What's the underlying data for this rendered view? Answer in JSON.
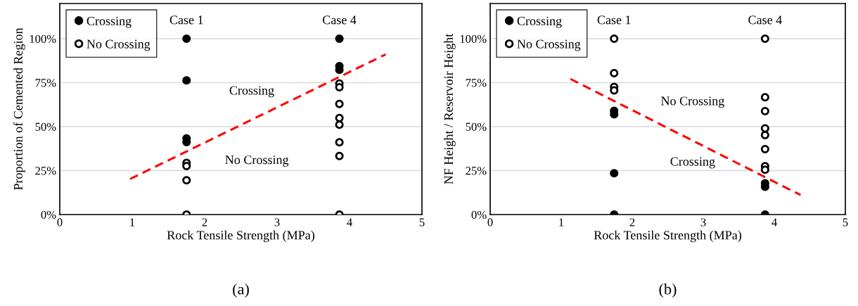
{
  "chart_data": [
    {
      "type": "scatter",
      "xlabel": "Rock Tensile Strength (MPa)",
      "ylabel": "Proportion of Cemented Region",
      "xlim": [
        0,
        5
      ],
      "xticks": [
        0,
        1,
        2,
        3,
        4,
        5
      ],
      "ylim": [
        0,
        120
      ],
      "yticks": [
        {
          "value": 0,
          "label": "0%"
        },
        {
          "value": 25,
          "label": "25%"
        },
        {
          "value": 50,
          "label": "50%"
        },
        {
          "value": 75,
          "label": "75%"
        },
        {
          "value": 100,
          "label": "100%"
        }
      ],
      "grid": "y",
      "legend": "top left",
      "series": [
        {
          "name": "Crossing",
          "color": "#000000",
          "marker": "circle",
          "x": [
            1.75,
            1.75,
            1.75,
            1.75,
            3.86,
            3.86,
            3.86
          ],
          "values": [
            100,
            76.3,
            43.3,
            41.2,
            100,
            84.4,
            82.3
          ]
        },
        {
          "name": "No Crossing",
          "color": "#000000",
          "marker": "circle",
          "x": [
            1.75,
            1.75,
            1.75,
            1.75,
            3.86,
            3.86,
            3.86,
            3.86,
            3.86,
            3.86,
            3.86,
            3.86
          ],
          "values": [
            29.4,
            27.6,
            19.5,
            0,
            74.5,
            72.4,
            62.9,
            54.9,
            51.1,
            41.1,
            33.3,
            0
          ]
        },
        {
          "type": "line",
          "color": "#ff0000",
          "line_style": "dashed",
          "marker": "none",
          "x": [
            0.97,
            4.5
          ],
          "values": [
            20.2,
            91.1
          ]
        }
      ],
      "annotations": [
        "Case 1",
        "Case 4",
        "Crossing",
        "No Crossing",
        "(a)"
      ]
    },
    {
      "type": "scatter",
      "xlabel": "Rock Tensile Strength (MPa)",
      "ylabel": "NF Height / Reservoir Height",
      "xlim": [
        0,
        5
      ],
      "xticks": [
        0,
        1,
        2,
        3,
        4,
        5
      ],
      "ylim": [
        0,
        120
      ],
      "yticks": [
        {
          "value": 0,
          "label": "0%"
        },
        {
          "value": 25,
          "label": "25%"
        },
        {
          "value": 50,
          "label": "50%"
        },
        {
          "value": 75,
          "label": "75%"
        },
        {
          "value": 100,
          "label": "100%"
        }
      ],
      "grid": "y",
      "legend": "top left",
      "series": [
        {
          "name": "Crossing",
          "color": "#000000",
          "marker": "circle",
          "x": [
            1.745,
            1.745,
            1.745,
            1.745,
            3.87,
            3.87,
            3.87
          ],
          "values": [
            59.0,
            57.0,
            23.5,
            0,
            17.8,
            15.8,
            0
          ]
        },
        {
          "name": "No Crossing",
          "color": "#000000",
          "marker": "circle",
          "x": [
            1.745,
            1.745,
            1.745,
            1.745,
            3.87,
            3.87,
            3.87,
            3.87,
            3.87,
            3.87,
            3.87,
            3.87
          ],
          "values": [
            100,
            80.4,
            72.6,
            70.6,
            100,
            66.7,
            58.8,
            49.0,
            45.2,
            37.2,
            27.5,
            25.5
          ]
        },
        {
          "type": "line",
          "color": "#ff0000",
          "line_style": "dashed",
          "marker": "none",
          "x": [
            1.13,
            4.37
          ],
          "values": [
            77.1,
            11.1
          ]
        }
      ],
      "annotations": [
        "Case 1",
        "Case 4",
        "No Crossing",
        "Crossing",
        "(b)"
      ]
    }
  ]
}
